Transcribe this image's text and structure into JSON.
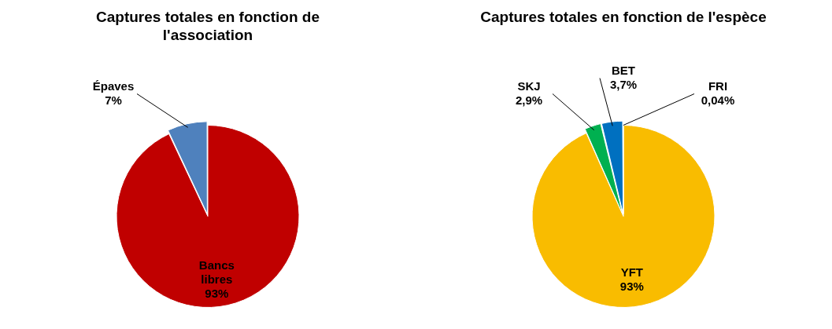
{
  "chart_data": [
    {
      "type": "pie",
      "title": "Captures totales en fonction de l'association",
      "categories": [
        "Bancs libres",
        "Épaves"
      ],
      "values": [
        93,
        7
      ],
      "colors": [
        "#c00000",
        "#4f81bd"
      ],
      "value_labels": [
        "93%",
        "7%"
      ],
      "legend": false
    },
    {
      "type": "pie",
      "title": "Captures totales en fonction de l'espèce",
      "categories": [
        "YFT",
        "SKJ",
        "BET",
        "FRI"
      ],
      "values": [
        93,
        2.9,
        3.7,
        0.04
      ],
      "colors": [
        "#f9bc00",
        "#00b050",
        "#0070c0",
        "#c55a11"
      ],
      "value_labels": [
        "93%",
        "2,9%",
        "3,7%",
        "0,04%"
      ],
      "legend": false
    }
  ]
}
